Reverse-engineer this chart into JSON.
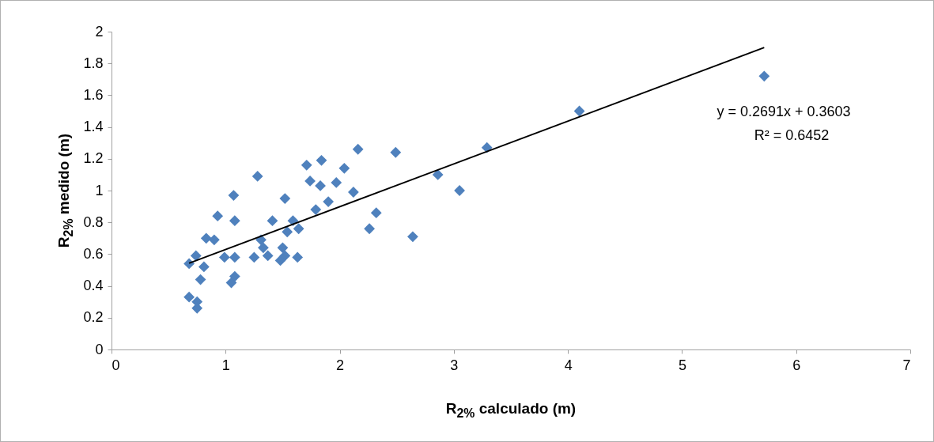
{
  "chart_data": {
    "type": "scatter",
    "xlabel": "R$_{2%}$ calculado (m)",
    "ylabel": "R$_{2%}$ medido (m)",
    "xlim": [
      0,
      7
    ],
    "ylim": [
      0,
      2
    ],
    "xticks": [
      0,
      1,
      2,
      3,
      4,
      5,
      6,
      7
    ],
    "yticks": [
      0,
      0.2,
      0.4,
      0.6,
      0.8,
      1,
      1.2,
      1.4,
      1.6,
      1.8,
      2
    ],
    "grid": false,
    "annotations": [
      "y = 0.2691x + 0.3603",
      "R² = 0.6452"
    ],
    "series": [
      {
        "color": "#4f81bd",
        "marker": "diamond",
        "x": [
          2.16,
          1.84,
          1.71,
          2.04,
          1.28,
          1.74,
          1.83,
          1.97,
          1.07,
          1.52,
          2.12,
          1.9,
          1.79,
          2.32,
          0.93,
          1.08,
          1.41,
          1.59,
          2.26,
          1.64,
          1.54,
          0.83,
          0.9,
          1.31,
          1.33,
          1.5,
          0.74,
          0.99,
          1.08,
          1.25,
          1.37,
          1.52,
          1.63,
          1.48,
          0.68,
          0.81,
          0.78,
          1.08,
          1.05,
          0.68,
          0.75,
          0.75,
          2.49,
          2.86,
          3.29,
          3.05,
          2.64,
          4.1,
          5.72
        ],
        "values": [
          1.26,
          1.19,
          1.16,
          1.14,
          1.09,
          1.06,
          1.03,
          1.05,
          0.97,
          0.95,
          0.99,
          0.93,
          0.88,
          0.86,
          0.84,
          0.81,
          0.81,
          0.81,
          0.76,
          0.76,
          0.74,
          0.7,
          0.69,
          0.69,
          0.64,
          0.64,
          0.59,
          0.58,
          0.58,
          0.58,
          0.59,
          0.59,
          0.58,
          0.56,
          0.54,
          0.52,
          0.44,
          0.46,
          0.42,
          0.33,
          0.3,
          0.26,
          1.24,
          1.1,
          1.27,
          1.0,
          0.71,
          1.5,
          1.72
        ]
      },
      {
        "type": "line",
        "color": "#000000",
        "line_style": "solid",
        "x": [
          0.68,
          5.72
        ],
        "values": [
          0.543,
          1.9
        ]
      }
    ]
  }
}
